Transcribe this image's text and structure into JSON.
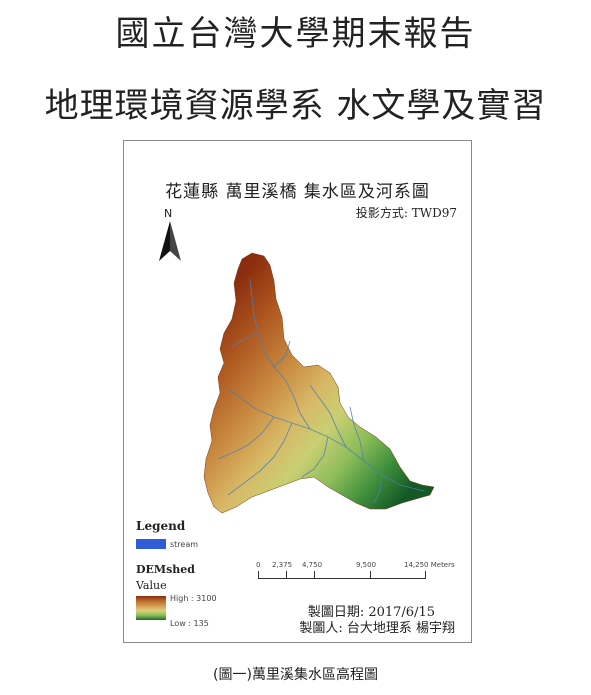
{
  "header": {
    "line1": "國立台灣大學期末報告",
    "line2": "地理環境資源學系 水文學及實習"
  },
  "map": {
    "title": "花蓮縣 萬里溪橋 集水區及河系圖",
    "projection": "投影方式: TWD97",
    "north_letter": "N",
    "legend": {
      "title": "Legend",
      "stream_label": "stream",
      "dem_label": "DEMshed",
      "value_label": "Value",
      "high_label": "High : 3100",
      "low_label": "Low : 135"
    },
    "scale": {
      "ticks": [
        "0",
        "2,375",
        "4,750",
        "9,500",
        "14,250 Meters"
      ]
    },
    "date": "製圖日期: 2017/6/15",
    "author": "製圖人: 台大地理系 楊宇翔",
    "colors": {
      "stream": "#2f5bd8",
      "high": "#8b2d0e",
      "low": "#1f6b2e"
    }
  },
  "caption": "(圖一)萬里溪集水區高程圖"
}
